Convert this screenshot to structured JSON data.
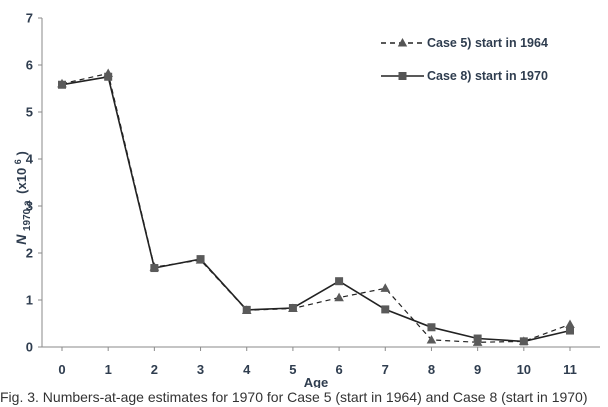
{
  "chart_data": {
    "type": "line",
    "xlabel": "Age",
    "ylabel_main": "N",
    "ylabel_sub": "1970,a",
    "ylabel_unit": "(x10",
    "ylabel_exp": "6",
    "ylabel_close": ")",
    "xlim": [
      0,
      11
    ],
    "ylim": [
      0,
      7
    ],
    "grid": false,
    "legend_position": "top-right",
    "x_ticks": [
      "0",
      "1",
      "2",
      "3",
      "4",
      "5",
      "6",
      "7",
      "8",
      "9",
      "10",
      "11"
    ],
    "y_ticks": [
      "0",
      "1",
      "2",
      "3",
      "4",
      "5",
      "6",
      "7"
    ],
    "x": [
      0,
      1,
      2,
      3,
      4,
      5,
      6,
      7,
      8,
      9,
      10,
      11
    ],
    "series": [
      {
        "name": "Case 5) start in 1964",
        "style": "dashed",
        "marker": "triangle",
        "color": "#222222",
        "values": [
          5.6,
          5.82,
          1.7,
          1.85,
          0.78,
          0.82,
          1.05,
          1.25,
          0.15,
          0.1,
          0.12,
          0.48
        ]
      },
      {
        "name": "Case 8) start in 1970",
        "style": "solid",
        "marker": "square",
        "color": "#222222",
        "values": [
          5.58,
          5.75,
          1.68,
          1.87,
          0.79,
          0.83,
          1.4,
          0.8,
          0.42,
          0.18,
          0.12,
          0.35
        ]
      }
    ]
  },
  "caption": "Fig. 3. Numbers-at-age estimates for 1970 for Case 5 (start in 1964) and Case 8 (start in 1970)"
}
